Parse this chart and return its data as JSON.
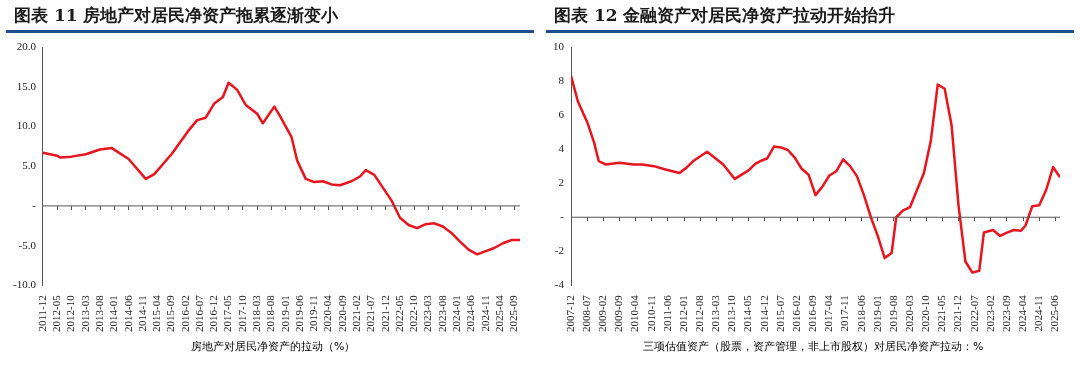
{
  "chart_data": [
    {
      "type": "line",
      "title": "图表 11 房地产对居民净资产拖累逐渐变小",
      "legend": "bottom",
      "marker": "none",
      "line_style": "solid",
      "grid": false,
      "xlim": [
        "2011-12",
        "2025-11"
      ],
      "xticks": [
        "2011-12",
        "2012-05",
        "2012-10",
        "2013-03",
        "2013-08",
        "2014-01",
        "2014-06",
        "2014-11",
        "2015-04",
        "2015-09",
        "2016-02",
        "2016-07",
        "2016-12",
        "2017-05",
        "2017-10",
        "2018-03",
        "2018-08",
        "2019-01",
        "2019-06",
        "2019-11",
        "2020-04",
        "2020-09",
        "2021-02",
        "2021-07",
        "2021-12",
        "2022-05",
        "2022-10",
        "2023-03",
        "2023-08",
        "2024-01",
        "2024-06",
        "2024-11",
        "2025-04",
        "2025-09"
      ],
      "ref_lines": [
        {
          "axis": "y",
          "value": 0,
          "color": "#555555"
        }
      ],
      "ylim": [
        -10,
        20
      ],
      "yticks": [
        {
          "value": -10,
          "label": "-10.0"
        },
        {
          "value": -5,
          "label": "-5.0"
        },
        {
          "value": 0,
          "label": "-"
        },
        {
          "value": 5,
          "label": "5.0"
        },
        {
          "value": 10,
          "label": "10.0"
        },
        {
          "value": 15,
          "label": "15.0"
        },
        {
          "value": 20,
          "label": "20.0"
        }
      ],
      "series": [
        {
          "name": "房地产对居民净资产的拉动（%）",
          "color": "#e8141e",
          "x": [
            "2011-12",
            "2012-05",
            "2012-06",
            "2012-10",
            "2013-03",
            "2013-08",
            "2013-12",
            "2014-06",
            "2014-12",
            "2015-03",
            "2015-09",
            "2016-03",
            "2016-06",
            "2016-09",
            "2016-12",
            "2017-03",
            "2017-05",
            "2017-08",
            "2017-11",
            "2018-03",
            "2018-05",
            "2018-09",
            "2018-11",
            "2019-03",
            "2019-05",
            "2019-08",
            "2019-11",
            "2020-02",
            "2020-05",
            "2020-08",
            "2020-12",
            "2021-03",
            "2021-05",
            "2021-08",
            "2022-02",
            "2022-05",
            "2022-08",
            "2022-11",
            "2023-02",
            "2023-05",
            "2023-08",
            "2023-11",
            "2024-02",
            "2024-05",
            "2024-08",
            "2024-11",
            "2025-02",
            "2025-05",
            "2025-08",
            "2025-11"
          ],
          "values": [
            6.7,
            6.3,
            6.1,
            6.2,
            6.5,
            7.1,
            7.3,
            5.9,
            3.4,
            4.0,
            6.5,
            9.5,
            10.8,
            11.1,
            12.9,
            13.7,
            15.5,
            14.6,
            12.7,
            11.6,
            10.4,
            12.5,
            11.3,
            8.7,
            5.7,
            3.4,
            3.0,
            3.1,
            2.7,
            2.6,
            3.1,
            3.7,
            4.5,
            3.9,
            0.7,
            -1.5,
            -2.4,
            -2.8,
            -2.3,
            -2.2,
            -2.6,
            -3.4,
            -4.5,
            -5.5,
            -6.1,
            -5.7,
            -5.3,
            -4.7,
            -4.3,
            -4.3
          ]
        }
      ]
    },
    {
      "type": "line",
      "title": "图表 12 金融资产对居民净资产拉动开始抬升",
      "legend": "bottom",
      "marker": "none",
      "line_style": "solid",
      "grid": false,
      "xlim": [
        "2007-12",
        "2025-08"
      ],
      "xticks": [
        "2007-12",
        "2008-07",
        "2009-02",
        "2009-09",
        "2010-04",
        "2010-11",
        "2011-06",
        "2012-01",
        "2012-08",
        "2013-03",
        "2013-10",
        "2014-05",
        "2014-12",
        "2015-07",
        "2016-02",
        "2016-09",
        "2017-04",
        "2017-11",
        "2018-06",
        "2019-01",
        "2019-08",
        "2020-03",
        "2020-10",
        "2021-05",
        "2021-12",
        "2022-07",
        "2023-02",
        "2023-09",
        "2024-04",
        "2024-11",
        "2025-06"
      ],
      "ref_lines": [
        {
          "axis": "y",
          "value": 0,
          "color": "#555555"
        }
      ],
      "ylim": [
        -4,
        10
      ],
      "yticks": [
        -4,
        -2,
        {
          "value": 0,
          "label": "-"
        },
        2,
        4,
        6,
        8,
        10
      ],
      "series": [
        {
          "name": "三项估值资产（股票，资产管理，非上市股权）对居民净资产拉动：%",
          "color": "#e8141e",
          "x": [
            "2007-12",
            "2008-03",
            "2008-07",
            "2008-10",
            "2008-12",
            "2009-03",
            "2009-09",
            "2010-03",
            "2010-07",
            "2010-12",
            "2011-05",
            "2011-11",
            "2012-02",
            "2012-05",
            "2012-11",
            "2013-06",
            "2013-11",
            "2014-05",
            "2014-08",
            "2014-11",
            "2015-01",
            "2015-04",
            "2015-07",
            "2015-10",
            "2016-01",
            "2016-04",
            "2016-07",
            "2016-10",
            "2017-01",
            "2017-04",
            "2017-07",
            "2017-10",
            "2018-01",
            "2018-04",
            "2018-07",
            "2018-10",
            "2019-01",
            "2019-04",
            "2019-07",
            "2019-09",
            "2019-12",
            "2020-03",
            "2020-06",
            "2020-09",
            "2020-12",
            "2021-03",
            "2021-06",
            "2021-09",
            "2021-12",
            "2022-03",
            "2022-06",
            "2022-09",
            "2022-11",
            "2023-03",
            "2023-06",
            "2023-09",
            "2023-12",
            "2024-03",
            "2024-05",
            "2024-08",
            "2024-11",
            "2025-02",
            "2025-05",
            "2025-08"
          ],
          "values": [
            8.3,
            6.8,
            5.6,
            4.4,
            3.3,
            3.1,
            3.2,
            3.1,
            3.1,
            3.0,
            2.8,
            2.6,
            2.9,
            3.3,
            3.85,
            3.1,
            2.25,
            2.75,
            3.15,
            3.35,
            3.45,
            4.15,
            4.1,
            3.95,
            3.5,
            2.85,
            2.5,
            1.3,
            1.8,
            2.45,
            2.7,
            3.4,
            3.0,
            2.4,
            1.3,
            0.0,
            -1.1,
            -2.4,
            -2.1,
            0.0,
            0.4,
            0.6,
            1.6,
            2.6,
            4.5,
            7.8,
            7.55,
            5.4,
            0.7,
            -2.6,
            -3.25,
            -3.15,
            -0.9,
            -0.75,
            -1.1,
            -0.9,
            -0.75,
            -0.8,
            -0.5,
            0.65,
            0.7,
            1.6,
            2.95,
            2.35
          ]
        }
      ]
    }
  ]
}
